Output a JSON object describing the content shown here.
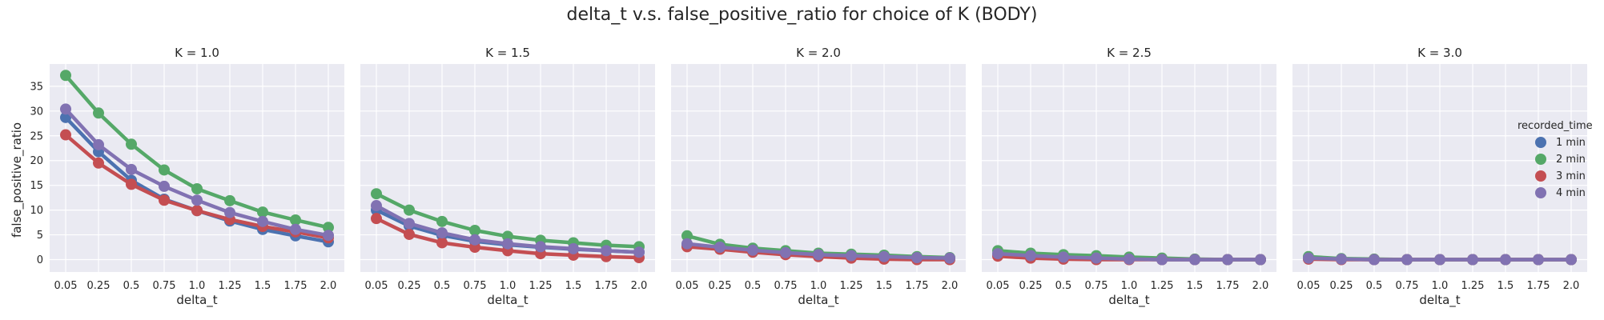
{
  "chart_data": {
    "type": "line",
    "title": "delta_t v.s. false_positive_ratio for choice of K (BODY)",
    "xlabel": "delta_t",
    "ylabel": "false_positive_ratio",
    "categories": [
      "0.05",
      "0.25",
      "0.5",
      "0.75",
      "1.0",
      "1.25",
      "1.5",
      "1.75",
      "2.0"
    ],
    "ylim": [
      -2.5,
      39.5
    ],
    "yticks": [
      0,
      5,
      10,
      15,
      20,
      25,
      30,
      35
    ],
    "grid": true,
    "legend": {
      "title": "recorded_time",
      "placement": "right",
      "entries": [
        "1 min",
        "2 min",
        "3 min",
        "4 min"
      ]
    },
    "colors": {
      "1 min": "#4c72b0",
      "2 min": "#55a868",
      "3 min": "#c44e52",
      "4 min": "#8172b2",
      "panel_background": "#eaeaf2",
      "grid": "#ffffff"
    },
    "panels": [
      {
        "title": "K = 1.0",
        "series": [
          {
            "name": "1 min",
            "values": [
              28.7,
              21.8,
              16.0,
              12.2,
              9.9,
              7.8,
              6.1,
              4.8,
              3.6
            ]
          },
          {
            "name": "2 min",
            "values": [
              37.2,
              29.6,
              23.3,
              18.1,
              14.3,
              11.9,
              9.6,
              8.0,
              6.5
            ]
          },
          {
            "name": "3 min",
            "values": [
              25.2,
              19.5,
              15.2,
              12.0,
              9.9,
              8.1,
              6.7,
              5.6,
              4.4
            ]
          },
          {
            "name": "4 min",
            "values": [
              30.4,
              23.2,
              18.2,
              14.8,
              12.0,
              9.5,
              7.7,
              6.1,
              4.9
            ]
          }
        ]
      },
      {
        "title": "K = 1.5",
        "series": [
          {
            "name": "1 min",
            "values": [
              10.0,
              6.8,
              4.9,
              3.7,
              3.0,
              2.5,
              2.1,
              1.8,
              1.5
            ]
          },
          {
            "name": "2 min",
            "values": [
              13.3,
              10.0,
              7.7,
              5.9,
              4.7,
              3.9,
              3.4,
              2.9,
              2.6
            ]
          },
          {
            "name": "3 min",
            "values": [
              8.3,
              5.1,
              3.4,
              2.5,
              1.8,
              1.2,
              0.9,
              0.6,
              0.4
            ]
          },
          {
            "name": "4 min",
            "values": [
              10.9,
              7.3,
              5.4,
              4.0,
              3.2,
              2.6,
              2.2,
              1.8,
              1.5
            ]
          }
        ]
      },
      {
        "title": "K = 2.0",
        "series": [
          {
            "name": "1 min",
            "values": [
              3.0,
              2.3,
              1.7,
              1.3,
              1.0,
              0.7,
              0.5,
              0.4,
              0.3
            ]
          },
          {
            "name": "2 min",
            "values": [
              4.8,
              3.1,
              2.3,
              1.8,
              1.3,
              1.1,
              0.9,
              0.6,
              0.4
            ]
          },
          {
            "name": "3 min",
            "values": [
              2.6,
              2.1,
              1.5,
              1.0,
              0.6,
              0.3,
              0.1,
              0.0,
              0.0
            ]
          },
          {
            "name": "4 min",
            "values": [
              3.2,
              2.5,
              1.9,
              1.4,
              1.0,
              0.8,
              0.6,
              0.4,
              0.3
            ]
          }
        ]
      },
      {
        "title": "K = 2.5",
        "series": [
          {
            "name": "1 min",
            "values": [
              1.1,
              0.7,
              0.4,
              0.2,
              0.1,
              0.0,
              0.0,
              0.0,
              0.0
            ]
          },
          {
            "name": "2 min",
            "values": [
              1.8,
              1.3,
              1.0,
              0.8,
              0.5,
              0.3,
              0.1,
              0.0,
              0.0
            ]
          },
          {
            "name": "3 min",
            "values": [
              0.7,
              0.3,
              0.1,
              0.0,
              0.0,
              0.0,
              0.0,
              0.0,
              0.0
            ]
          },
          {
            "name": "4 min",
            "values": [
              1.2,
              0.8,
              0.5,
              0.3,
              0.1,
              0.0,
              0.0,
              0.0,
              0.0
            ]
          }
        ]
      },
      {
        "title": "K = 3.0",
        "series": [
          {
            "name": "1 min",
            "values": [
              0.2,
              0.1,
              0.0,
              0.0,
              0.0,
              0.0,
              0.0,
              0.0,
              0.0
            ]
          },
          {
            "name": "2 min",
            "values": [
              0.6,
              0.2,
              0.1,
              0.0,
              0.0,
              0.0,
              0.0,
              0.0,
              0.0
            ]
          },
          {
            "name": "3 min",
            "values": [
              0.1,
              0.0,
              0.0,
              0.0,
              0.0,
              0.0,
              0.0,
              0.0,
              0.0
            ]
          },
          {
            "name": "4 min",
            "values": [
              0.3,
              0.1,
              0.0,
              0.0,
              0.0,
              0.0,
              0.0,
              0.0,
              0.0
            ]
          }
        ]
      }
    ]
  }
}
